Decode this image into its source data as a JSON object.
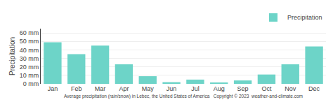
{
  "chart_data": {
    "type": "bar",
    "categories": [
      "Jan",
      "Feb",
      "Mar",
      "Apr",
      "May",
      "Jun",
      "Jul",
      "Aug",
      "Sep",
      "Oct",
      "Nov",
      "Dec"
    ],
    "series": [
      {
        "name": "Precipitation",
        "color": "#6DD4C8",
        "values": [
          49,
          35,
          45,
          23,
          9,
          2,
          5,
          1,
          4,
          11,
          23,
          44
        ]
      }
    ],
    "ylabel": "Precipitation",
    "xlabel": "Average precipitation (rain/snow) in Lebec, the United States of America   Copyright © 2023  weather-and-climate.com",
    "ylim": [
      0,
      65
    ],
    "yticks": [
      {
        "value": 0,
        "label": "0 mm"
      },
      {
        "value": 10,
        "label": "10 mm"
      },
      {
        "value": 20,
        "label": "20 mm"
      },
      {
        "value": 30,
        "label": "30 mm"
      },
      {
        "value": 40,
        "label": "40 mm"
      },
      {
        "value": 50,
        "label": "50 mm"
      },
      {
        "value": 60,
        "label": "60 mm"
      }
    ],
    "grid": true,
    "legend": "upper right"
  }
}
